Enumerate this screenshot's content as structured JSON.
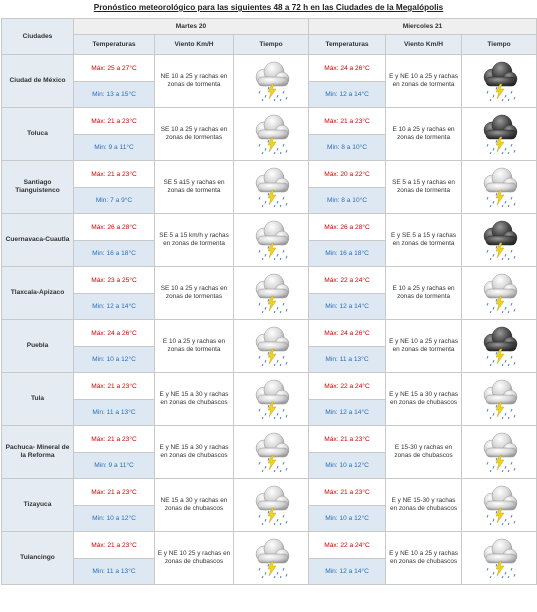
{
  "title": "Pronóstico meteorológico para las siguientes 48 a 72 h en las Ciudades de la Megalópolis",
  "headers": {
    "city": "Ciudades",
    "day1": "Martes 20",
    "day2": "Miercoles 21",
    "temps": "Temperaturas",
    "wind": "Viento Km/H",
    "weather": "Tiempo"
  },
  "colors": {
    "max": "#d00000",
    "min": "#2a6fb8",
    "header_bg": "#e4ebf3",
    "min_bg": "#dde8f3"
  },
  "rows": [
    {
      "city": "Ciudad de México",
      "d1": {
        "max": "Máx: 25 a 27°C",
        "min": "Min: 13 a 15°C",
        "wind": "NE 10 a 25 y rachas en zonas de tormenta",
        "icon": "storm-light-icon"
      },
      "d2": {
        "max": "Máx: 24 a 26°C",
        "min": "Min: 12 a 14°C",
        "wind": "E y NE 10 a 25 y rachas en zonas de tormenta",
        "icon": "storm-dark-icon"
      }
    },
    {
      "city": "Toluca",
      "d1": {
        "max": "Máx: 21 a 23°C",
        "min": "Min: 9 a 11°C",
        "wind": "SE 10 a 25 y rachas en zonas de tormentas",
        "icon": "storm-light-icon"
      },
      "d2": {
        "max": "Máx: 21 a 23°C",
        "min": "Min: 8 a 10°C",
        "wind": "E 10 a 25 y rachas en zonas de tormenta",
        "icon": "storm-dark-icon"
      }
    },
    {
      "city": "Santiago Tianguistenco",
      "d1": {
        "max": "Máx: 21 a 23°C",
        "min": "Min: 7 a 9°C",
        "wind": "SE 5 a15 y rachas en zonas de tormenta",
        "icon": "storm-light-icon"
      },
      "d2": {
        "max": "Máx: 20 a 22°C",
        "min": "Min: 8 a 10°C",
        "wind": "SE 5 a 15 y rachas en zonas de tormenta",
        "icon": "storm-light-icon"
      }
    },
    {
      "city": "Cuernavaca-Cuautla",
      "d1": {
        "max": "Máx: 26 a 28°C",
        "min": "Min: 16 a 18°C",
        "wind": "SE 5 a 15 km/h y rachas en zonas de tormenta",
        "icon": "storm-light-icon"
      },
      "d2": {
        "max": "Máx: 26 a 28°C",
        "min": "Min: 16 a 18°C",
        "wind": "E y SE 5 a 15 y rachas en zonas de tormenta",
        "icon": "storm-dark-icon"
      }
    },
    {
      "city": "Tlaxcala-Apizaco",
      "d1": {
        "max": "Máx: 23 a 25°C",
        "min": "Min: 12 a 14°C",
        "wind": "SE 10 a 25 y rachas en zonas de tormentas",
        "icon": "storm-light-icon"
      },
      "d2": {
        "max": "Máx: 22 a 24°C",
        "min": "Min: 12 a 14°C",
        "wind": "E 10 a 25 y rachas en zonas de tormenta",
        "icon": "storm-light-icon"
      }
    },
    {
      "city": "Puebla",
      "d1": {
        "max": "Máx: 24 a 26°C",
        "min": "Min: 10 a 12°C",
        "wind": "E 10 a 25 y rachas en zonas de tormenta",
        "icon": "storm-light-icon"
      },
      "d2": {
        "max": "Máx: 24 a 26°C",
        "min": "Min: 11 a 13°C",
        "wind": "E y NE 10 a 25 y rachas en zonas de tormenta",
        "icon": "storm-dark-icon"
      }
    },
    {
      "city": "Tula",
      "d1": {
        "max": "Máx: 21 a 23°C",
        "min": "Min: 11 a 13°C",
        "wind": "E y NE 15 a 30 y rachas en zonas de chubascos",
        "icon": "storm-light-icon"
      },
      "d2": {
        "max": "Máx: 22 a 24°C",
        "min": "Min: 12 a 14°C",
        "wind": "E y NE 15 a 30 y rachas en zonas de chubascos",
        "icon": "storm-light-icon"
      }
    },
    {
      "city": "Pachuca- Mineral de la Reforma",
      "d1": {
        "max": "Máx: 21 a 23°C",
        "min": "Min: 9 a 11°C",
        "wind": "E y NE 15 a 30 y rachas en zonas de chubascos",
        "icon": "storm-light-icon"
      },
      "d2": {
        "max": "Máx: 21 a 23°C",
        "min": "Min: 10 a 12°C",
        "wind": "E 15-30 y rachas en zonas de chubascos",
        "icon": "storm-light-icon"
      }
    },
    {
      "city": "Tizayuca",
      "d1": {
        "max": "Máx: 21 a 23°C",
        "min": "Min: 10 a 12°C",
        "wind": "NE 15 a 30 y rachas en zonas de chubascos",
        "icon": "storm-light-icon"
      },
      "d2": {
        "max": "Máx: 21 a 23°C",
        "min": "Min: 10 a 12°C",
        "wind": "E y NE 15-30 y rachas en zonas de chubascos",
        "icon": "storm-light-icon"
      }
    },
    {
      "city": "Tulancingo",
      "d1": {
        "max": "Máx: 21 a 23°C",
        "min": "Min: 11 a 13°C",
        "wind": "E y NE 10 25 y rachas en zonas de chubascos",
        "icon": "storm-light-icon"
      },
      "d2": {
        "max": "Máx: 22 a 24°C",
        "min": "Min: 12 a 14°C",
        "wind": "E y NE 10 a 25 y rachas en zonas de chubascos",
        "icon": "storm-light-icon"
      }
    }
  ]
}
